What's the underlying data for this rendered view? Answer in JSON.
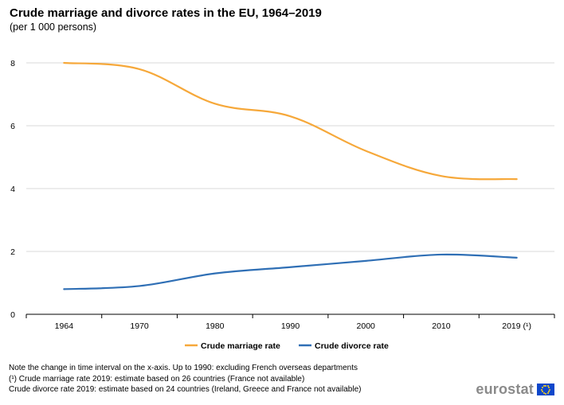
{
  "title": "Crude marriage and divorce rates in the EU, 1964–2019",
  "subtitle": "(per 1 000 persons)",
  "notes": [
    "Note the change in time interval on the x-axis. Up to 1990: excluding French overseas departments",
    "(¹) Crude marriage rate 2019: estimate based on 26 countries (France not available)",
    "Crude divorce rate 2019: estimate based on 24 countries (Ireland, Greece and France not available)"
  ],
  "logo": {
    "text": "eurostat",
    "flag_icon": "eu-flag-icon"
  },
  "colors": {
    "marriage": "#f6a83a",
    "divorce": "#2f6fb5",
    "grid": "#d9d9d9",
    "axis": "#000000"
  },
  "chart_data": {
    "type": "line",
    "categories": [
      "1964",
      "1970",
      "1980",
      "1990",
      "2000",
      "2010",
      "2019 (¹)"
    ],
    "yticks": [
      "0",
      "2",
      "4",
      "6",
      "8"
    ],
    "ylim": [
      0,
      8.5
    ],
    "grid": true,
    "legend_position": "bottom",
    "series": [
      {
        "name": "Crude marriage rate",
        "values": [
          8.0,
          7.8,
          6.7,
          6.3,
          5.2,
          4.4,
          4.3
        ]
      },
      {
        "name": "Crude divorce rate",
        "values": [
          0.8,
          0.9,
          1.3,
          1.5,
          1.7,
          1.9,
          1.8
        ]
      }
    ]
  }
}
